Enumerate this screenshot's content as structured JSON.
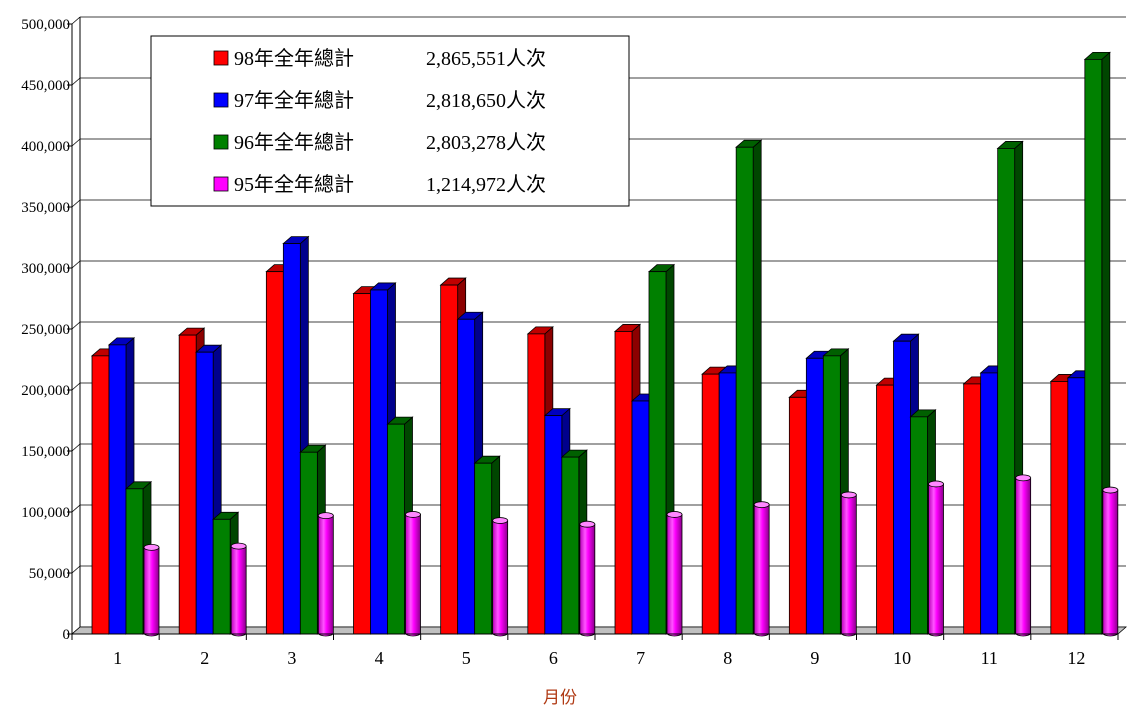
{
  "chart_data": {
    "type": "bar",
    "xlabel": "月份",
    "ylabel": "",
    "ylim": [
      0,
      500000
    ],
    "yticks": [
      0,
      50000,
      100000,
      150000,
      200000,
      250000,
      300000,
      350000,
      400000,
      450000,
      500000
    ],
    "ytick_labels": [
      "0",
      "50,000",
      "100,000",
      "150,000",
      "200,000",
      "250,000",
      "300,000",
      "350,000",
      "400,000",
      "450,000",
      "500,000"
    ],
    "categories": [
      "1",
      "2",
      "3",
      "4",
      "5",
      "6",
      "7",
      "8",
      "9",
      "10",
      "11",
      "12"
    ],
    "grid": true,
    "legend_position": "top-left",
    "series": [
      {
        "name": "98年全年總計",
        "total": "2,865,551人次",
        "color": "#ff0000",
        "shape": "box",
        "values": [
          228000,
          245000,
          297000,
          279000,
          286000,
          246000,
          248000,
          213000,
          194000,
          204000,
          205000,
          207000
        ]
      },
      {
        "name": "97年全年總計",
        "total": "2,818,650人次",
        "color": "#0000ff",
        "shape": "box",
        "values": [
          237000,
          231000,
          320000,
          282000,
          258000,
          179000,
          191000,
          214000,
          226000,
          240000,
          214000,
          210000
        ]
      },
      {
        "name": "96年全年總計",
        "total": "2,803,278人次",
        "color": "#008000",
        "shape": "box",
        "values": [
          119000,
          94000,
          149000,
          172000,
          140000,
          145000,
          297000,
          399000,
          228000,
          178000,
          398000,
          471000
        ]
      },
      {
        "name": "95年全年總計",
        "total": "1,214,972人次",
        "color": "#ff00ff",
        "shape": "cylinder",
        "values": [
          71000,
          72000,
          97000,
          98000,
          93000,
          90000,
          98000,
          106000,
          114000,
          123000,
          128000,
          118000
        ]
      }
    ]
  }
}
